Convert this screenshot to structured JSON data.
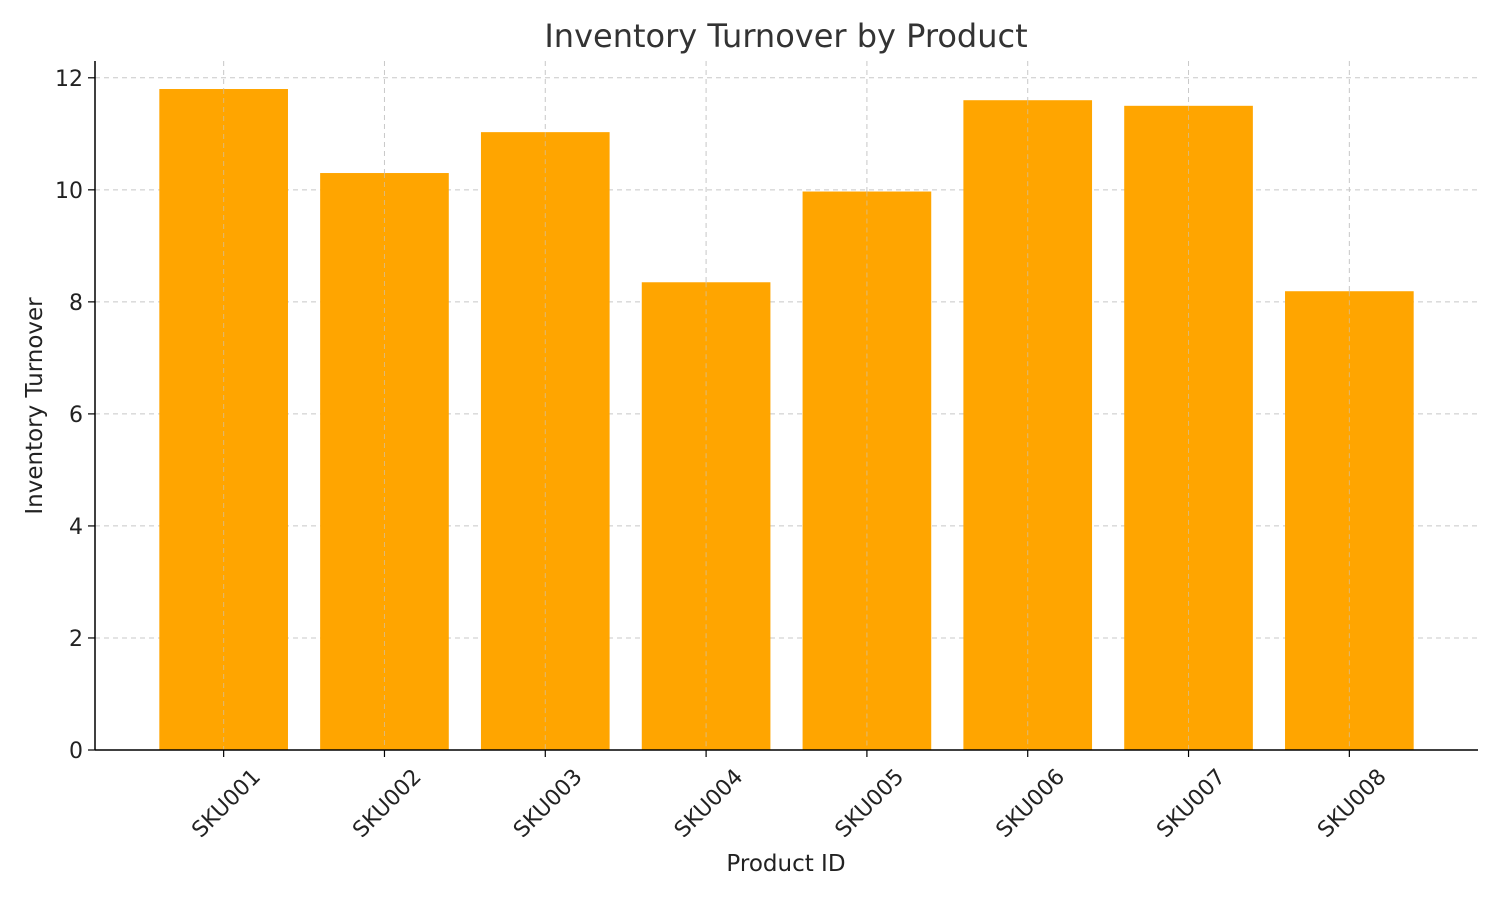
{
  "chart_data": {
    "type": "bar",
    "title": "Inventory Turnover by Product",
    "xlabel": "Product ID",
    "ylabel": "Inventory Turnover",
    "categories": [
      "SKU001",
      "SKU002",
      "SKU003",
      "SKU004",
      "SKU005",
      "SKU006",
      "SKU007",
      "SKU008"
    ],
    "values": [
      11.8,
      10.3,
      11.03,
      8.35,
      9.97,
      11.6,
      11.5,
      8.19
    ],
    "ylim": [
      0,
      12.3
    ],
    "yticks": [
      0,
      2,
      4,
      6,
      8,
      10,
      12
    ],
    "grid": true,
    "bar_color": "#FFA500"
  }
}
